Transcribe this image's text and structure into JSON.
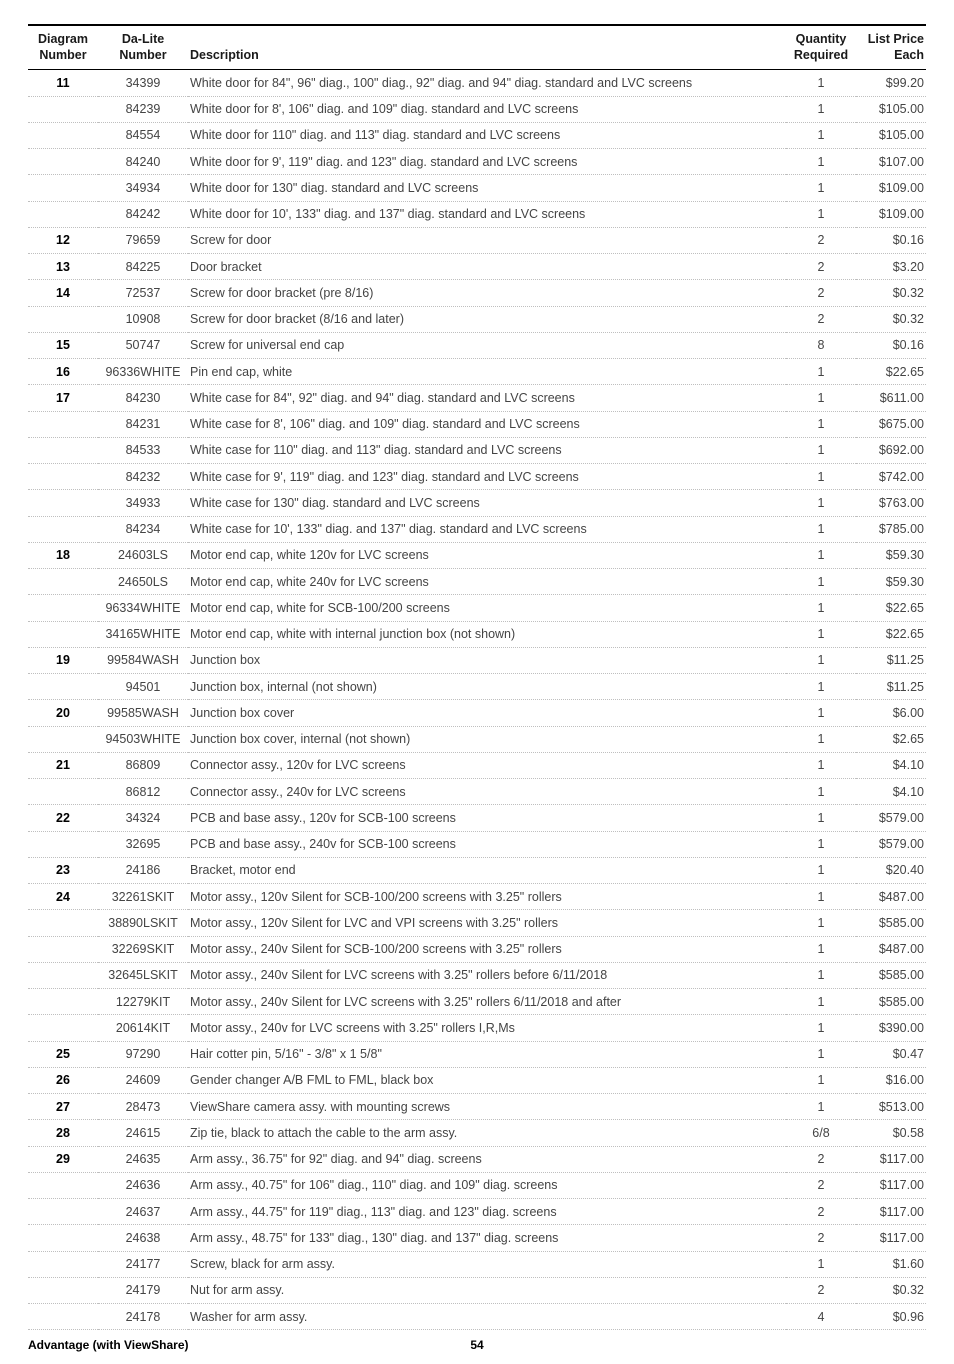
{
  "headers": {
    "diagram": "Diagram Number",
    "dalite": "Da-Lite Number",
    "description": "Description",
    "quantity": "Quantity Required",
    "price": "List Price Each"
  },
  "rows": [
    {
      "diag": "11",
      "dalite": "34399",
      "desc": "White door for 84\", 96\" diag., 100\" diag., 92\" diag. and 94\" diag. standard and LVC screens",
      "qty": "1",
      "price": "$99.20"
    },
    {
      "diag": "",
      "dalite": "84239",
      "desc": "White door for 8', 106\" diag. and 109\" diag. standard and LVC screens",
      "qty": "1",
      "price": "$105.00"
    },
    {
      "diag": "",
      "dalite": "84554",
      "desc": "White door for 110\" diag. and 113\" diag. standard and LVC screens",
      "qty": "1",
      "price": "$105.00"
    },
    {
      "diag": "",
      "dalite": "84240",
      "desc": "White door for 9', 119\" diag. and 123\" diag. standard and LVC screens",
      "qty": "1",
      "price": "$107.00"
    },
    {
      "diag": "",
      "dalite": "34934",
      "desc": "White door for 130\" diag. standard and LVC screens",
      "qty": "1",
      "price": "$109.00"
    },
    {
      "diag": "",
      "dalite": "84242",
      "desc": "White door for 10', 133\" diag. and 137\" diag. standard and LVC screens",
      "qty": "1",
      "price": "$109.00"
    },
    {
      "diag": "12",
      "dalite": "79659",
      "desc": "Screw for door",
      "qty": "2",
      "price": "$0.16"
    },
    {
      "diag": "13",
      "dalite": "84225",
      "desc": "Door bracket",
      "qty": "2",
      "price": "$3.20"
    },
    {
      "diag": "14",
      "dalite": "72537",
      "desc": "Screw for door bracket (pre 8/16)",
      "qty": "2",
      "price": "$0.32"
    },
    {
      "diag": "",
      "dalite": "10908",
      "desc": "Screw for door bracket (8/16 and later)",
      "qty": "2",
      "price": "$0.32"
    },
    {
      "diag": "15",
      "dalite": "50747",
      "desc": "Screw for universal end cap",
      "qty": "8",
      "price": "$0.16"
    },
    {
      "diag": "16",
      "dalite": "96336WHITE",
      "desc": "Pin end cap, white",
      "qty": "1",
      "price": "$22.65"
    },
    {
      "diag": "17",
      "dalite": "84230",
      "desc": "White case for 84\", 92\" diag. and 94\" diag. standard and LVC screens",
      "qty": "1",
      "price": "$611.00"
    },
    {
      "diag": "",
      "dalite": "84231",
      "desc": "White case for 8', 106\" diag. and 109\" diag. standard and LVC screens",
      "qty": "1",
      "price": "$675.00"
    },
    {
      "diag": "",
      "dalite": "84533",
      "desc": "White case for 110\" diag. and 113\" diag. standard and LVC screens",
      "qty": "1",
      "price": "$692.00"
    },
    {
      "diag": "",
      "dalite": "84232",
      "desc": "White case for 9', 119\" diag. and 123\" diag. standard and LVC screens",
      "qty": "1",
      "price": "$742.00"
    },
    {
      "diag": "",
      "dalite": "34933",
      "desc": "White case for 130\" diag. standard and LVC screens",
      "qty": "1",
      "price": "$763.00"
    },
    {
      "diag": "",
      "dalite": "84234",
      "desc": "White case for 10', 133\" diag. and 137\" diag. standard and LVC screens",
      "qty": "1",
      "price": "$785.00"
    },
    {
      "diag": "18",
      "dalite": "24603LS",
      "desc": "Motor end cap, white 120v for LVC screens",
      "qty": "1",
      "price": "$59.30"
    },
    {
      "diag": "",
      "dalite": "24650LS",
      "desc": "Motor end cap, white 240v for LVC screens",
      "qty": "1",
      "price": "$59.30"
    },
    {
      "diag": "",
      "dalite": "96334WHITE",
      "desc": "Motor end cap, white for SCB-100/200 screens",
      "qty": "1",
      "price": "$22.65"
    },
    {
      "diag": "",
      "dalite": "34165WHITE",
      "desc": "Motor end cap, white with internal junction box (not shown)",
      "qty": "1",
      "price": "$22.65"
    },
    {
      "diag": "19",
      "dalite": "99584WASH",
      "desc": "Junction box",
      "qty": "1",
      "price": "$11.25"
    },
    {
      "diag": "",
      "dalite": "94501",
      "desc": "Junction box, internal (not shown)",
      "qty": "1",
      "price": "$11.25"
    },
    {
      "diag": "20",
      "dalite": "99585WASH",
      "desc": "Junction box cover",
      "qty": "1",
      "price": "$6.00"
    },
    {
      "diag": "",
      "dalite": "94503WHITE",
      "desc": "Junction box cover, internal (not shown)",
      "qty": "1",
      "price": "$2.65"
    },
    {
      "diag": "21",
      "dalite": "86809",
      "desc": "Connector assy., 120v for LVC screens",
      "qty": "1",
      "price": "$4.10"
    },
    {
      "diag": "",
      "dalite": "86812",
      "desc": "Connector assy., 240v for LVC screens",
      "qty": "1",
      "price": "$4.10"
    },
    {
      "diag": "22",
      "dalite": "34324",
      "desc": "PCB and base assy., 120v for SCB-100 screens",
      "qty": "1",
      "price": "$579.00"
    },
    {
      "diag": "",
      "dalite": "32695",
      "desc": "PCB and base assy., 240v for SCB-100 screens",
      "qty": "1",
      "price": "$579.00"
    },
    {
      "diag": "23",
      "dalite": "24186",
      "desc": "Bracket, motor end",
      "qty": "1",
      "price": "$20.40"
    },
    {
      "diag": "24",
      "dalite": "32261SKIT",
      "desc": "Motor assy., 120v Silent for SCB-100/200 screens with 3.25\" rollers",
      "qty": "1",
      "price": "$487.00"
    },
    {
      "diag": "",
      "dalite": "38890LSKIT",
      "desc": "Motor assy., 120v Silent for LVC and VPI screens with 3.25\" rollers",
      "qty": "1",
      "price": "$585.00"
    },
    {
      "diag": "",
      "dalite": "32269SKIT",
      "desc": "Motor assy., 240v Silent for SCB-100/200 screens with 3.25\" rollers",
      "qty": "1",
      "price": "$487.00"
    },
    {
      "diag": "",
      "dalite": "32645LSKIT",
      "desc": "Motor assy., 240v Silent for LVC screens with 3.25\" rollers before 6/11/2018",
      "qty": "1",
      "price": "$585.00"
    },
    {
      "diag": "",
      "dalite": "12279KIT",
      "desc": "Motor assy., 240v Silent for LVC screens with 3.25\" rollers 6/11/2018 and after",
      "qty": "1",
      "price": "$585.00"
    },
    {
      "diag": "",
      "dalite": "20614KIT",
      "desc": "Motor assy., 240v for LVC screens with 3.25\" rollers I,R,Ms",
      "qty": "1",
      "price": "$390.00"
    },
    {
      "diag": "25",
      "dalite": "97290",
      "desc": "Hair cotter pin, 5/16\" - 3/8\" x 1 5/8\"",
      "qty": "1",
      "price": "$0.47"
    },
    {
      "diag": "26",
      "dalite": "24609",
      "desc": "Gender changer A/B FML to FML, black box",
      "qty": "1",
      "price": "$16.00"
    },
    {
      "diag": "27",
      "dalite": "28473",
      "desc": "ViewShare camera assy. with mounting screws",
      "qty": "1",
      "price": "$513.00"
    },
    {
      "diag": "28",
      "dalite": "24615",
      "desc": "Zip tie, black to attach the cable to the arm assy.",
      "qty": "6/8",
      "price": "$0.58"
    },
    {
      "diag": "29",
      "dalite": "24635",
      "desc": "Arm assy., 36.75\" for 92\" diag. and 94\" diag. screens",
      "qty": "2",
      "price": "$117.00"
    },
    {
      "diag": "",
      "dalite": "24636",
      "desc": "Arm assy., 40.75\" for 106\" diag., 110\" diag. and 109\" diag. screens",
      "qty": "2",
      "price": "$117.00"
    },
    {
      "diag": "",
      "dalite": "24637",
      "desc": "Arm assy., 44.75\" for 119\" diag., 113\" diag. and 123\" diag. screens",
      "qty": "2",
      "price": "$117.00"
    },
    {
      "diag": "",
      "dalite": "24638",
      "desc": "Arm assy., 48.75\" for 133\" diag., 130\" diag. and 137\" diag. screens",
      "qty": "2",
      "price": "$117.00"
    },
    {
      "diag": "",
      "dalite": "24177",
      "desc": "Screw, black for arm assy.",
      "qty": "1",
      "price": "$1.60"
    },
    {
      "diag": "",
      "dalite": "24179",
      "desc": "Nut for arm assy.",
      "qty": "2",
      "price": "$0.32"
    },
    {
      "diag": "",
      "dalite": "24178",
      "desc": "Washer for arm assy.",
      "qty": "4",
      "price": "$0.96"
    }
  ],
  "footer": {
    "title": "Advantage (with ViewShare)",
    "page": "54"
  }
}
